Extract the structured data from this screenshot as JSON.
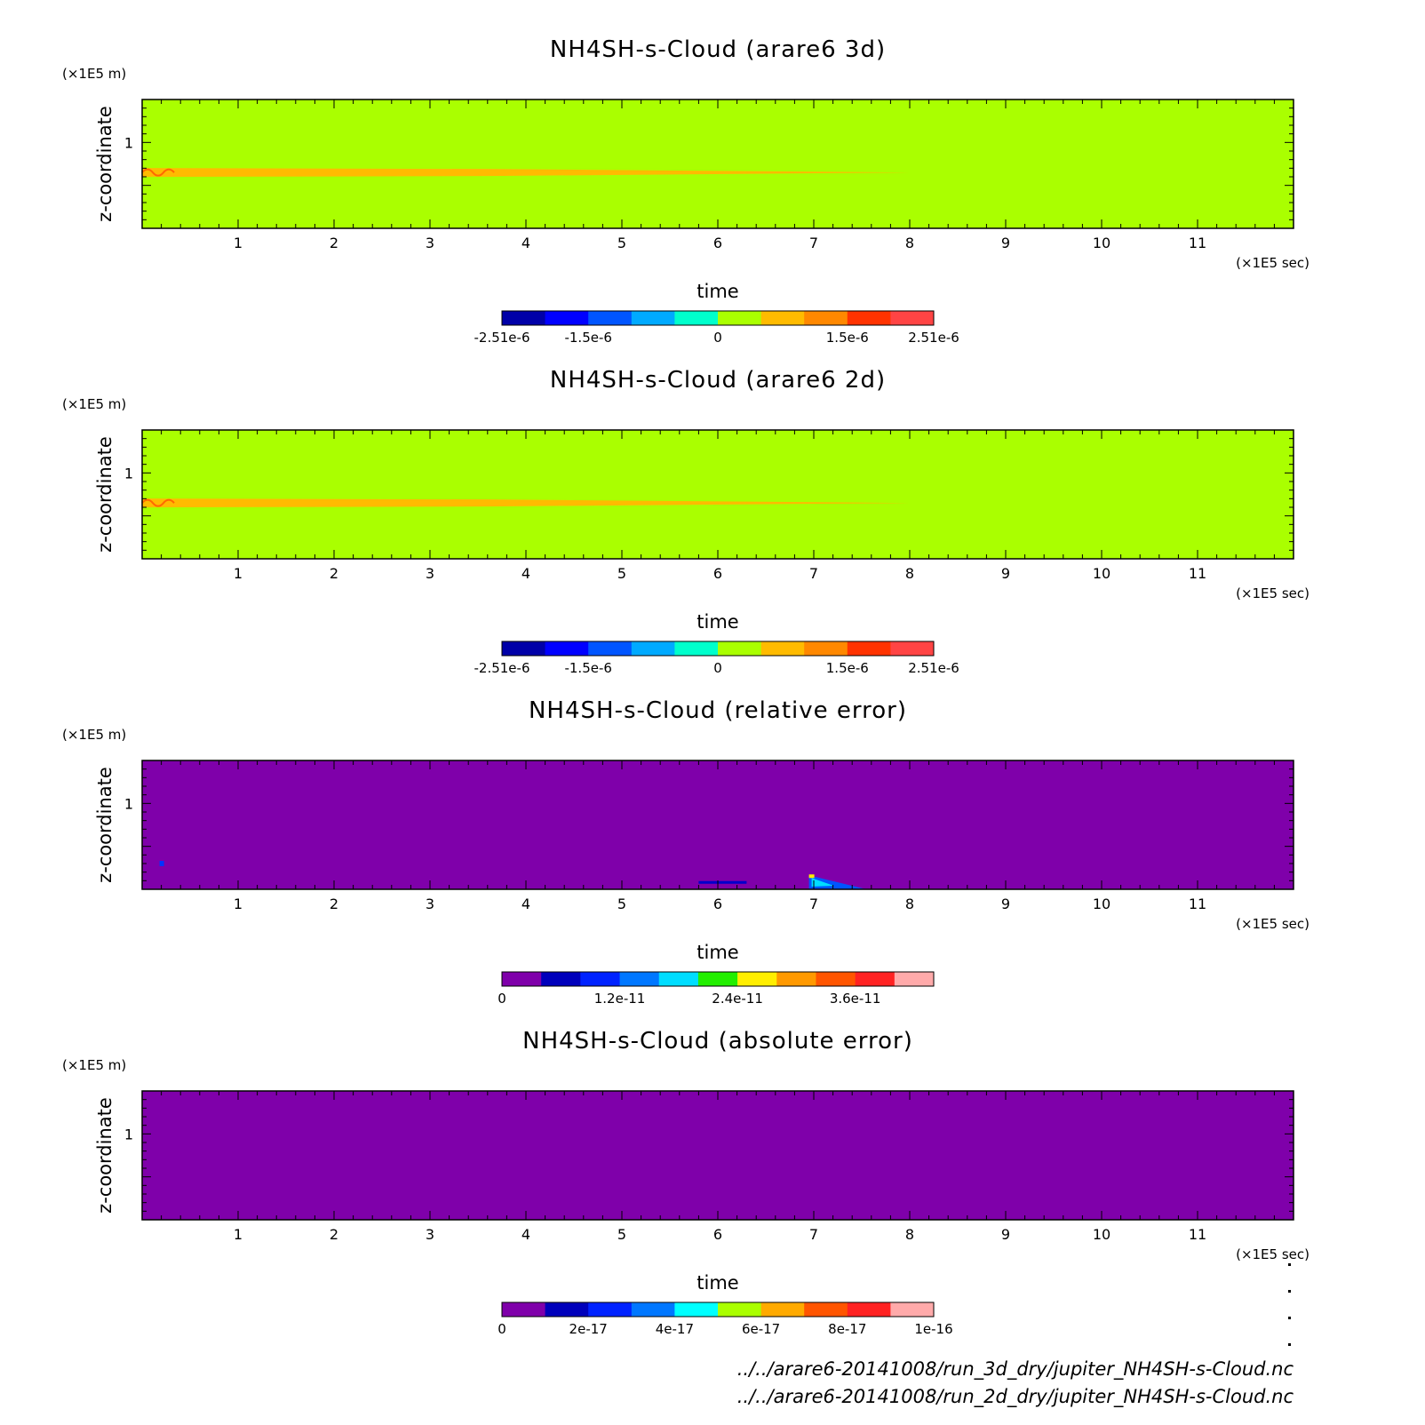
{
  "chart_data": [
    {
      "type": "heatmap",
      "title": "NH4SH-s-Cloud (arare6 3d)",
      "xlabel": "time",
      "ylabel": "z-coordinate",
      "x_unit": "(×1E5 sec)",
      "y_unit": "(×1E5 m)",
      "xlim": [
        0,
        12
      ],
      "ylim": [
        0,
        1.5
      ],
      "x_ticks": [
        "1",
        "2",
        "3",
        "4",
        "5",
        "6",
        "7",
        "8",
        "9",
        "10",
        "11"
      ],
      "y_ticks": [
        "1"
      ],
      "background_color": "#aaff00",
      "features": [
        {
          "kind": "band",
          "z": 0.65,
          "x_start": 0.0,
          "x_end": 8.0,
          "color": "#ffbb00"
        }
      ],
      "colorbar": {
        "colors": [
          "#0000a8",
          "#0000ff",
          "#0055ff",
          "#00aaff",
          "#00ffcc",
          "#aaff00",
          "#ffbb00",
          "#ff8800",
          "#ff3300",
          "#ff4444"
        ],
        "labels": [
          {
            "text": "-2.51e-6",
            "pos": 0
          },
          {
            "text": "-1.5e-6",
            "pos": 2
          },
          {
            "text": "0",
            "pos": 5
          },
          {
            "text": "1.5e-6",
            "pos": 8
          },
          {
            "text": "2.51e-6",
            "pos": 10
          }
        ]
      }
    },
    {
      "type": "heatmap",
      "title": "NH4SH-s-Cloud (arare6 2d)",
      "xlabel": "time",
      "ylabel": "z-coordinate",
      "x_unit": "(×1E5 sec)",
      "y_unit": "(×1E5 m)",
      "xlim": [
        0,
        12
      ],
      "ylim": [
        0,
        1.5
      ],
      "x_ticks": [
        "1",
        "2",
        "3",
        "4",
        "5",
        "6",
        "7",
        "8",
        "9",
        "10",
        "11"
      ],
      "y_ticks": [
        "1"
      ],
      "background_color": "#aaff00",
      "features": [
        {
          "kind": "band",
          "z": 0.65,
          "x_start": 0.0,
          "x_end": 8.0,
          "color": "#ffbb00"
        }
      ],
      "colorbar": {
        "colors": [
          "#0000a8",
          "#0000ff",
          "#0055ff",
          "#00aaff",
          "#00ffcc",
          "#aaff00",
          "#ffbb00",
          "#ff8800",
          "#ff3300",
          "#ff4444"
        ],
        "labels": [
          {
            "text": "-2.51e-6",
            "pos": 0
          },
          {
            "text": "-1.5e-6",
            "pos": 2
          },
          {
            "text": "0",
            "pos": 5
          },
          {
            "text": "1.5e-6",
            "pos": 8
          },
          {
            "text": "2.51e-6",
            "pos": 10
          }
        ]
      }
    },
    {
      "type": "heatmap",
      "title": "NH4SH-s-Cloud (relative error)",
      "xlabel": "time",
      "ylabel": "z-coordinate",
      "x_unit": "(×1E5 sec)",
      "y_unit": "(×1E5 m)",
      "xlim": [
        0,
        12
      ],
      "ylim": [
        0,
        1.5
      ],
      "x_ticks": [
        "1",
        "2",
        "3",
        "4",
        "5",
        "6",
        "7",
        "8",
        "9",
        "10",
        "11"
      ],
      "y_ticks": [
        "1"
      ],
      "background_color": "#7f00aa",
      "features": [
        {
          "kind": "spot",
          "x": 0.2,
          "z": 0.3,
          "color": "#0033ff"
        },
        {
          "kind": "streak",
          "x_start": 5.8,
          "x_end": 6.3,
          "z": 0.08,
          "color": "#0000cc"
        },
        {
          "kind": "wedge",
          "x_start": 6.95,
          "x_end": 7.55,
          "z": 0.08,
          "color": "#0055ff"
        }
      ],
      "colorbar": {
        "colors": [
          "#7f00aa",
          "#0000bb",
          "#0022ff",
          "#0077ff",
          "#00ddff",
          "#22ee00",
          "#ffee00",
          "#ff9900",
          "#ff5500",
          "#ff2222",
          "#ffaaaa"
        ],
        "labels": [
          {
            "text": "0",
            "pos": 0
          },
          {
            "text": "1.2e-11",
            "pos": 3
          },
          {
            "text": "2.4e-11",
            "pos": 6
          },
          {
            "text": "3.6e-11",
            "pos": 9
          }
        ]
      }
    },
    {
      "type": "heatmap",
      "title": "NH4SH-s-Cloud (absolute error)",
      "xlabel": "time",
      "ylabel": "z-coordinate",
      "x_unit": "(×1E5 sec)",
      "y_unit": "(×1E5 m)",
      "xlim": [
        0,
        12
      ],
      "ylim": [
        0,
        1.5
      ],
      "x_ticks": [
        "1",
        "2",
        "3",
        "4",
        "5",
        "6",
        "7",
        "8",
        "9",
        "10",
        "11"
      ],
      "y_ticks": [
        "1"
      ],
      "background_color": "#7f00aa",
      "features": [],
      "colorbar": {
        "colors": [
          "#7f00aa",
          "#0000bb",
          "#0022ff",
          "#0077ff",
          "#00ffff",
          "#aaff00",
          "#ffaa00",
          "#ff5500",
          "#ff2222",
          "#ffaaaa"
        ],
        "labels": [
          {
            "text": "0",
            "pos": 0
          },
          {
            "text": "2e-17",
            "pos": 2
          },
          {
            "text": "4e-17",
            "pos": 4
          },
          {
            "text": "6e-17",
            "pos": 6
          },
          {
            "text": "8e-17",
            "pos": 8
          },
          {
            "text": "1e-16",
            "pos": 10
          }
        ]
      }
    }
  ],
  "footer": {
    "line1": "../../arare6-20141008/run_3d_dry/jupiter_NH4SH-s-Cloud.nc",
    "line2": "../../arare6-20141008/run_2d_dry/jupiter_NH4SH-s-Cloud.nc"
  }
}
